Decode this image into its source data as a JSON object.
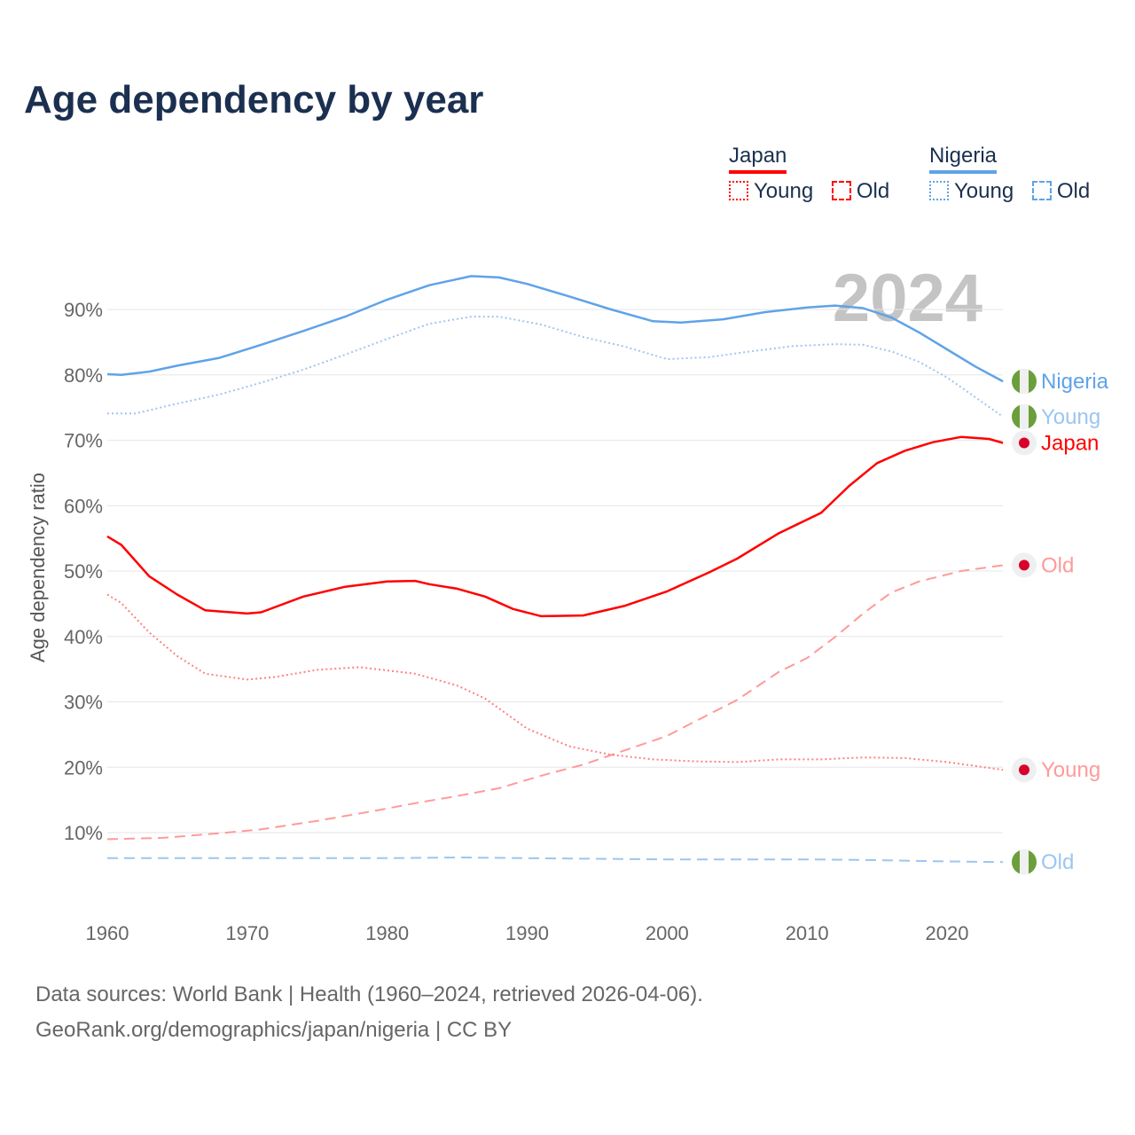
{
  "title": "Age dependency by year",
  "legend": {
    "groups": [
      {
        "name": "Japan",
        "color": "#ff0000",
        "young": "Young",
        "old": "Old"
      },
      {
        "name": "Nigeria",
        "color": "#5fa3e8",
        "young": "Young",
        "old": "Old"
      }
    ]
  },
  "year_watermark": "2024",
  "source_line1": "Data sources: World Bank | Health (1960–2024, retrieved 2026-04-06).",
  "source_line2": "GeoRank.org/demographics/japan/nigeria | CC BY",
  "chart_data": {
    "type": "line",
    "title": "Age dependency by year",
    "xlabel": "",
    "ylabel": "Age dependency ratio",
    "xlim": [
      1960,
      2024
    ],
    "ylim": [
      0,
      100
    ],
    "xticks": [
      1960,
      1970,
      1980,
      1990,
      2000,
      2010,
      2020
    ],
    "yticks": [
      "10%",
      "20%",
      "30%",
      "40%",
      "50%",
      "60%",
      "70%",
      "80%",
      "90%"
    ],
    "series": [
      {
        "name": "Nigeria",
        "label": "Nigeria",
        "country": "Nigeria",
        "style": "solid",
        "color": "#5fa3e8",
        "labelColor": "#5fa3e8",
        "x": [
          1960,
          1961,
          1963,
          1965,
          1968,
          1971,
          1974,
          1977,
          1980,
          1983,
          1986,
          1988,
          1990,
          1993,
          1996,
          1999,
          2001,
          2004,
          2007,
          2010,
          2012,
          2014,
          2016,
          2018,
          2020,
          2022,
          2024
        ],
        "y": [
          80.1,
          80.0,
          80.5,
          81.4,
          82.6,
          84.6,
          86.7,
          88.9,
          91.5,
          93.7,
          95.1,
          94.9,
          93.9,
          92.0,
          90.0,
          88.2,
          88.0,
          88.5,
          89.6,
          90.3,
          90.6,
          90.2,
          88.8,
          86.5,
          83.9,
          81.3,
          79.0
        ]
      },
      {
        "name": "Nigeria Young",
        "label": "Young",
        "country": "Nigeria",
        "style": "dotted",
        "color": "#9cc6f0",
        "labelColor": "#9cc6f0",
        "x": [
          1960,
          1962,
          1965,
          1968,
          1971,
          1974,
          1977,
          1980,
          1983,
          1986,
          1988,
          1991,
          1994,
          1997,
          2000,
          2003,
          2006,
          2009,
          2012,
          2014,
          2016,
          2018,
          2020,
          2022,
          2024
        ],
        "y": [
          74.1,
          74.1,
          75.6,
          77.0,
          78.8,
          80.8,
          83.1,
          85.5,
          87.8,
          88.9,
          88.9,
          87.7,
          85.8,
          84.3,
          82.4,
          82.7,
          83.6,
          84.4,
          84.7,
          84.6,
          83.6,
          82.0,
          79.6,
          76.6,
          73.6
        ]
      },
      {
        "name": "Japan",
        "label": "Japan",
        "country": "Japan",
        "style": "solid",
        "color": "#ff0000",
        "labelColor": "#ff0000",
        "x": [
          1960,
          1961,
          1963,
          1965,
          1967,
          1970,
          1971,
          1974,
          1977,
          1980,
          1982,
          1983,
          1985,
          1987,
          1989,
          1991,
          1994,
          1997,
          2000,
          2003,
          2005,
          2008,
          2011,
          2013,
          2015,
          2017,
          2019,
          2021,
          2023,
          2024
        ],
        "y": [
          55.3,
          54.0,
          49.2,
          46.4,
          44.0,
          43.5,
          43.7,
          46.1,
          47.6,
          48.4,
          48.5,
          48.0,
          47.3,
          46.1,
          44.2,
          43.1,
          43.2,
          44.7,
          46.9,
          49.8,
          51.9,
          55.8,
          58.9,
          63.0,
          66.5,
          68.4,
          69.7,
          70.5,
          70.2,
          69.6
        ]
      },
      {
        "name": "Japan Old",
        "label": "Old",
        "country": "Japan",
        "style": "dashed",
        "color": "#ff9a9a",
        "labelColor": "#ff9a9a",
        "x": [
          1960,
          1964,
          1968,
          1971,
          1975,
          1979,
          1982,
          1985,
          1988,
          1991,
          1994,
          1997,
          2000,
          2003,
          2005,
          2008,
          2010,
          2012,
          2014,
          2016,
          2018,
          2021,
          2024
        ],
        "y": [
          9.0,
          9.2,
          9.9,
          10.5,
          11.8,
          13.3,
          14.5,
          15.6,
          16.8,
          18.7,
          20.4,
          22.6,
          24.8,
          28.1,
          30.3,
          34.6,
          36.7,
          39.9,
          43.5,
          46.7,
          48.4,
          50.0,
          50.9
        ]
      },
      {
        "name": "Japan Young",
        "label": "Young",
        "country": "Japan",
        "style": "dotted",
        "color": "#ff8080",
        "labelColor": "#ff9a9a",
        "x": [
          1960,
          1961,
          1963,
          1965,
          1967,
          1970,
          1972,
          1975,
          1978,
          1980,
          1982,
          1985,
          1987,
          1990,
          1993,
          1996,
          1999,
          2002,
          2005,
          2008,
          2011,
          2014,
          2017,
          2020,
          2024
        ],
        "y": [
          46.4,
          45.1,
          40.6,
          37.0,
          34.3,
          33.4,
          33.8,
          34.9,
          35.3,
          34.8,
          34.3,
          32.5,
          30.5,
          25.9,
          23.2,
          21.9,
          21.2,
          20.9,
          20.8,
          21.2,
          21.2,
          21.5,
          21.4,
          20.8,
          19.6
        ]
      },
      {
        "name": "Nigeria Old",
        "label": "Old",
        "country": "Nigeria",
        "style": "dashed",
        "color": "#9cc6f0",
        "labelColor": "#9cc6f0",
        "x": [
          1960,
          1970,
          1980,
          1985,
          1990,
          2000,
          2010,
          2015,
          2020,
          2024
        ],
        "y": [
          6.1,
          6.1,
          6.1,
          6.2,
          6.1,
          5.9,
          5.9,
          5.8,
          5.6,
          5.5
        ]
      }
    ]
  }
}
